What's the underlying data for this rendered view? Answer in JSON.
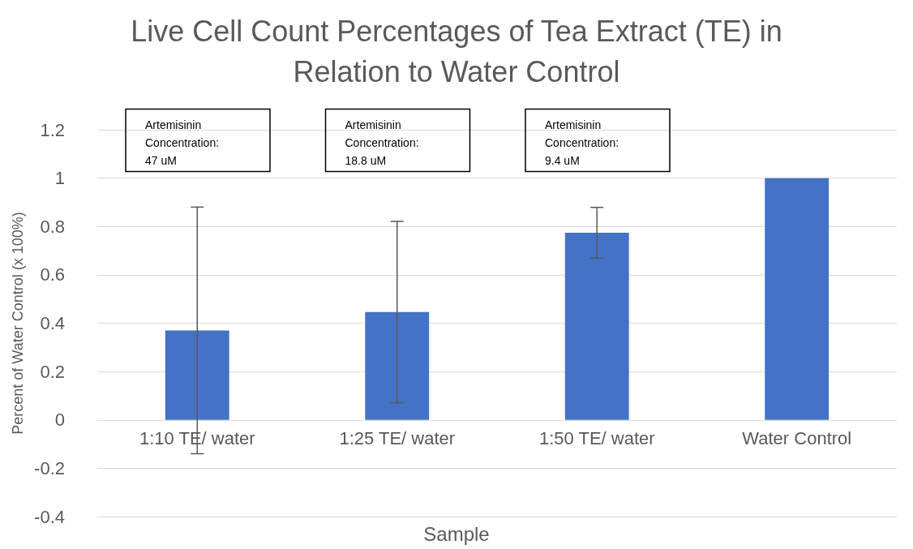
{
  "chart_data": {
    "type": "bar",
    "title": "Live Cell Count Percentages of Tea Extract (TE) in\nRelation to Water Control",
    "xlabel": "Sample",
    "ylabel": "Percent of Water Control (x 100%)",
    "categories": [
      "1:10 TE/ water",
      "1:25 TE/ water",
      "1:50 TE/ water",
      "Water Control"
    ],
    "values": [
      0.37,
      0.446,
      0.774,
      1.0
    ],
    "errors": [
      0.51,
      0.375,
      0.105,
      null
    ],
    "color": "#4472c4",
    "ylim": [
      -0.4,
      1.2
    ],
    "yticks": [
      -0.4,
      -0.2,
      0,
      0.2,
      0.4,
      0.6,
      0.8,
      1,
      1.2
    ],
    "grid": "y",
    "annotations": [
      "Artemisinin\nConcentration:\n47 uM",
      "Artemisinin\nConcentration:\n18.8 uM",
      "Artemisinin\nConcentration:\n9.4 uM"
    ]
  }
}
